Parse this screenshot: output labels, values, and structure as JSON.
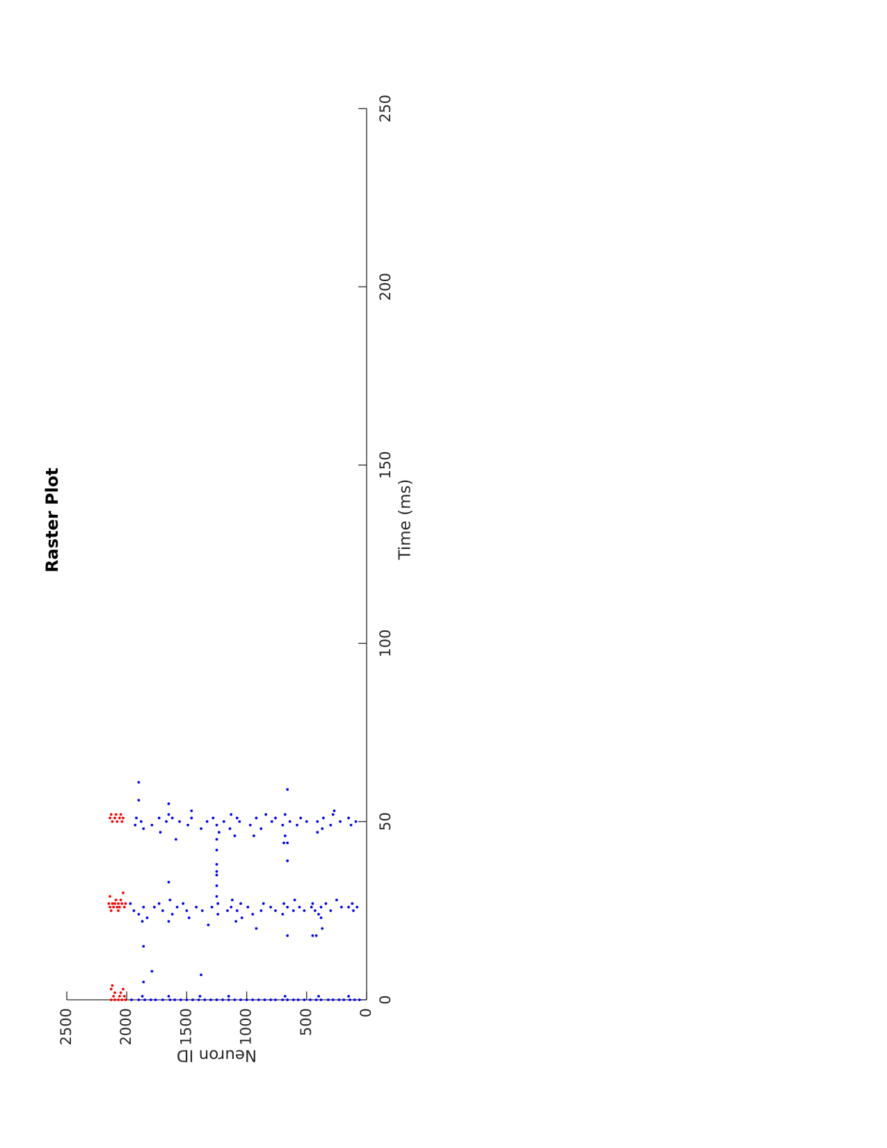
{
  "chart_data": {
    "type": "scatter",
    "title": "Raster Plot",
    "xlabel": "Time (ms)",
    "ylabel": "Neuron ID",
    "xlim": [
      0,
      250
    ],
    "ylim": [
      0,
      2500
    ],
    "xticks": [
      0,
      50,
      100,
      150,
      200,
      250
    ],
    "yticks": [
      0,
      500,
      1000,
      1500,
      2000,
      2500
    ],
    "grid": false,
    "legend": "none",
    "orientation": "rotated 90 degrees counter-clockwise",
    "marker": "dot",
    "series": [
      {
        "color": "#0000ff",
        "points": [
          [
            0,
            60
          ],
          [
            0,
            100
          ],
          [
            0,
            140
          ],
          [
            0,
            190
          ],
          [
            0,
            230
          ],
          [
            0,
            280
          ],
          [
            0,
            320
          ],
          [
            0,
            380
          ],
          [
            0,
            420
          ],
          [
            0,
            470
          ],
          [
            0,
            520
          ],
          [
            0,
            570
          ],
          [
            0,
            610
          ],
          [
            0,
            660
          ],
          [
            0,
            700
          ],
          [
            0,
            760
          ],
          [
            0,
            800
          ],
          [
            0,
            850
          ],
          [
            0,
            900
          ],
          [
            0,
            950
          ],
          [
            0,
            1000
          ],
          [
            0,
            1050
          ],
          [
            0,
            1100
          ],
          [
            0,
            1150
          ],
          [
            0,
            1200
          ],
          [
            0,
            1250
          ],
          [
            0,
            1300
          ],
          [
            0,
            1350
          ],
          [
            0,
            1400
          ],
          [
            0,
            1450
          ],
          [
            0,
            1500
          ],
          [
            0,
            1550
          ],
          [
            0,
            1600
          ],
          [
            0,
            1640
          ],
          [
            0,
            1700
          ],
          [
            0,
            1760
          ],
          [
            0,
            1800
          ],
          [
            0,
            1850
          ],
          [
            0,
            1900
          ],
          [
            0,
            1960
          ],
          [
            1,
            150
          ],
          [
            1,
            400
          ],
          [
            1,
            680
          ],
          [
            1,
            1150
          ],
          [
            1,
            1390
          ],
          [
            1,
            1650
          ],
          [
            1,
            1870
          ],
          [
            5,
            1860
          ],
          [
            7,
            1380
          ],
          [
            8,
            1790
          ],
          [
            15,
            1860
          ],
          [
            18,
            420
          ],
          [
            18,
            450
          ],
          [
            18,
            660
          ],
          [
            20,
            370
          ],
          [
            20,
            920
          ],
          [
            21,
            1320
          ],
          [
            22,
            1090
          ],
          [
            22,
            1870
          ],
          [
            22,
            1650
          ],
          [
            23,
            380
          ],
          [
            23,
            1040
          ],
          [
            23,
            1480
          ],
          [
            23,
            1830
          ],
          [
            24,
            400
          ],
          [
            24,
            700
          ],
          [
            24,
            950
          ],
          [
            24,
            1240
          ],
          [
            24,
            1620
          ],
          [
            24,
            1900
          ],
          [
            25,
            110
          ],
          [
            25,
            300
          ],
          [
            25,
            430
          ],
          [
            25,
            520
          ],
          [
            25,
            610
          ],
          [
            25,
            760
          ],
          [
            25,
            880
          ],
          [
            25,
            1080
          ],
          [
            25,
            1160
          ],
          [
            25,
            1370
          ],
          [
            25,
            1500
          ],
          [
            25,
            1700
          ],
          [
            25,
            1940
          ],
          [
            26,
            80
          ],
          [
            26,
            150
          ],
          [
            26,
            210
          ],
          [
            26,
            380
          ],
          [
            26,
            460
          ],
          [
            26,
            560
          ],
          [
            26,
            660
          ],
          [
            26,
            800
          ],
          [
            26,
            990
          ],
          [
            26,
            1130
          ],
          [
            26,
            1290
          ],
          [
            26,
            1420
          ],
          [
            26,
            1580
          ],
          [
            26,
            1770
          ],
          [
            26,
            1860
          ],
          [
            27,
            120
          ],
          [
            27,
            340
          ],
          [
            27,
            450
          ],
          [
            27,
            690
          ],
          [
            27,
            860
          ],
          [
            27,
            1050
          ],
          [
            27,
            1240
          ],
          [
            27,
            1530
          ],
          [
            27,
            1730
          ],
          [
            27,
            1970
          ],
          [
            28,
            250
          ],
          [
            28,
            600
          ],
          [
            28,
            1120
          ],
          [
            28,
            1640
          ],
          [
            29,
            1250
          ],
          [
            32,
            1250
          ],
          [
            33,
            1650
          ],
          [
            35,
            1250
          ],
          [
            36,
            1250
          ],
          [
            38,
            1250
          ],
          [
            39,
            660
          ],
          [
            42,
            1250
          ],
          [
            44,
            690
          ],
          [
            44,
            660
          ],
          [
            45,
            1250
          ],
          [
            45,
            1590
          ],
          [
            46,
            680
          ],
          [
            46,
            940
          ],
          [
            46,
            1100
          ],
          [
            47,
            410
          ],
          [
            47,
            1230
          ],
          [
            47,
            1720
          ],
          [
            48,
            370
          ],
          [
            48,
            880
          ],
          [
            48,
            1140
          ],
          [
            48,
            1380
          ],
          [
            48,
            1860
          ],
          [
            49,
            130
          ],
          [
            49,
            300
          ],
          [
            49,
            580
          ],
          [
            49,
            700
          ],
          [
            49,
            970
          ],
          [
            49,
            1250
          ],
          [
            49,
            1490
          ],
          [
            49,
            1790
          ],
          [
            49,
            1930
          ],
          [
            50,
            90
          ],
          [
            50,
            220
          ],
          [
            50,
            410
          ],
          [
            50,
            500
          ],
          [
            50,
            640
          ],
          [
            50,
            790
          ],
          [
            50,
            1060
          ],
          [
            50,
            1190
          ],
          [
            50,
            1330
          ],
          [
            50,
            1560
          ],
          [
            50,
            1670
          ],
          [
            50,
            1880
          ],
          [
            51,
            150
          ],
          [
            51,
            360
          ],
          [
            51,
            550
          ],
          [
            51,
            760
          ],
          [
            51,
            920
          ],
          [
            51,
            1080
          ],
          [
            51,
            1280
          ],
          [
            51,
            1460
          ],
          [
            51,
            1620
          ],
          [
            51,
            1730
          ],
          [
            51,
            1920
          ],
          [
            52,
            280
          ],
          [
            52,
            680
          ],
          [
            52,
            840
          ],
          [
            52,
            1130
          ],
          [
            52,
            1650
          ],
          [
            53,
            270
          ],
          [
            53,
            1460
          ],
          [
            55,
            1650
          ],
          [
            56,
            1900
          ],
          [
            59,
            660
          ],
          [
            61,
            1900
          ]
        ]
      },
      {
        "color": "#ff0000",
        "points": [
          [
            0,
            2010
          ],
          [
            0,
            2040
          ],
          [
            0,
            2070
          ],
          [
            0,
            2100
          ],
          [
            0,
            2130
          ],
          [
            1,
            2020
          ],
          [
            1,
            2060
          ],
          [
            1,
            2110
          ],
          [
            2,
            2050
          ],
          [
            2,
            2100
          ],
          [
            3,
            2030
          ],
          [
            3,
            2130
          ],
          [
            4,
            2120
          ],
          [
            25,
            2070
          ],
          [
            25,
            2130
          ],
          [
            26,
            2020
          ],
          [
            26,
            2060
          ],
          [
            26,
            2080
          ],
          [
            26,
            2110
          ],
          [
            26,
            2140
          ],
          [
            27,
            2010
          ],
          [
            27,
            2040
          ],
          [
            27,
            2070
          ],
          [
            27,
            2100
          ],
          [
            27,
            2120
          ],
          [
            27,
            2150
          ],
          [
            28,
            2050
          ],
          [
            28,
            2090
          ],
          [
            29,
            2140
          ],
          [
            30,
            2030
          ],
          [
            50,
            2040
          ],
          [
            50,
            2080
          ],
          [
            50,
            2120
          ],
          [
            51,
            2030
          ],
          [
            51,
            2060
          ],
          [
            51,
            2100
          ],
          [
            51,
            2140
          ],
          [
            52,
            2050
          ],
          [
            52,
            2090
          ],
          [
            52,
            2130
          ]
        ]
      }
    ]
  }
}
